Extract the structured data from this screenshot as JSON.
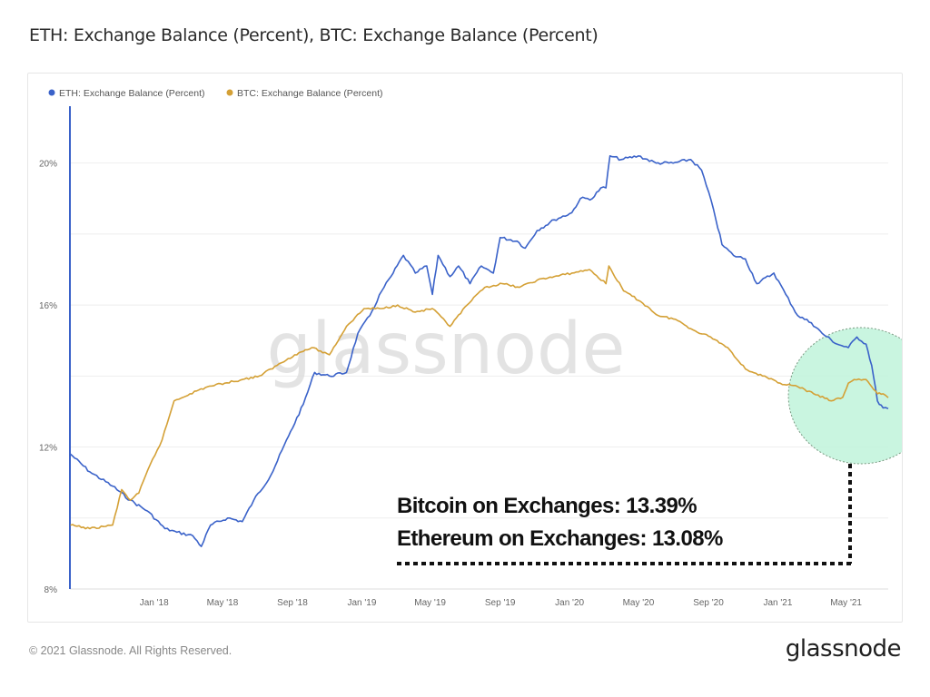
{
  "page": {
    "title": "ETH: Exchange Balance (Percent), BTC: Exchange Balance (Percent)",
    "footer_copyright": "© 2021 Glassnode. All Rights Reserved.",
    "footer_logo": "glassnode"
  },
  "chart_data": {
    "type": "line",
    "title": "ETH: Exchange Balance (Percent), BTC: Exchange Balance (Percent)",
    "legend": {
      "position": "top-left"
    },
    "grid": true,
    "watermark": "glassnode",
    "colors": {
      "ETH": "#3a62c9",
      "BTC": "#d4a035",
      "highlight_fill": "#bff3da",
      "highlight_stroke": "#7a9a82"
    },
    "y_ticks": [
      "8%",
      "12%",
      "16%",
      "20%"
    ],
    "ylim": [
      8,
      21.5
    ],
    "x_ticks": [
      "Jan '18",
      "May '18",
      "Sep '18",
      "Jan '19",
      "May '19",
      "Sep '19",
      "Jan '20",
      "May '20",
      "Sep '20",
      "Jan '21",
      "May '21"
    ],
    "x_range": [
      "2017-08-06",
      "2021-07-14"
    ],
    "series": [
      {
        "name": "ETH: Exchange Balance (Percent)",
        "color": "#3a62c9",
        "points": [
          [
            "2017-08-07",
            11.8
          ],
          [
            "2017-09-10",
            11.3
          ],
          [
            "2017-10-20",
            10.9
          ],
          [
            "2017-11-20",
            10.5
          ],
          [
            "2017-12-20",
            10.2
          ],
          [
            "2018-01-20",
            9.7
          ],
          [
            "2018-02-10",
            9.6
          ],
          [
            "2018-03-10",
            9.5
          ],
          [
            "2018-03-25",
            9.2
          ],
          [
            "2018-04-10",
            9.8
          ],
          [
            "2018-05-10",
            10.0
          ],
          [
            "2018-06-05",
            9.9
          ],
          [
            "2018-06-25",
            10.5
          ],
          [
            "2018-07-25",
            11.2
          ],
          [
            "2018-08-25",
            12.3
          ],
          [
            "2018-09-20",
            13.2
          ],
          [
            "2018-10-10",
            14.1
          ],
          [
            "2018-11-05",
            14.0
          ],
          [
            "2018-12-05",
            14.1
          ],
          [
            "2018-12-25",
            15.2
          ],
          [
            "2019-01-15",
            15.7
          ],
          [
            "2019-02-05",
            16.4
          ],
          [
            "2019-02-25",
            16.9
          ],
          [
            "2019-03-15",
            17.4
          ],
          [
            "2019-04-05",
            16.9
          ],
          [
            "2019-04-25",
            17.1
          ],
          [
            "2019-05-05",
            16.3
          ],
          [
            "2019-05-15",
            17.4
          ],
          [
            "2019-06-05",
            16.8
          ],
          [
            "2019-06-20",
            17.1
          ],
          [
            "2019-07-10",
            16.6
          ],
          [
            "2019-07-30",
            17.1
          ],
          [
            "2019-08-20",
            16.9
          ],
          [
            "2019-09-01",
            17.9
          ],
          [
            "2019-10-01",
            17.8
          ],
          [
            "2019-10-15",
            17.6
          ],
          [
            "2019-11-05",
            18.1
          ],
          [
            "2019-12-05",
            18.4
          ],
          [
            "2020-01-05",
            18.6
          ],
          [
            "2020-01-20",
            19.0
          ],
          [
            "2020-02-10",
            19.0
          ],
          [
            "2020-02-25",
            19.3
          ],
          [
            "2020-03-05",
            19.3
          ],
          [
            "2020-03-12",
            20.2
          ],
          [
            "2020-04-01",
            20.1
          ],
          [
            "2020-05-01",
            20.2
          ],
          [
            "2020-06-01",
            20.0
          ],
          [
            "2020-07-01",
            20.0
          ],
          [
            "2020-08-01",
            20.1
          ],
          [
            "2020-08-20",
            19.8
          ],
          [
            "2020-09-10",
            18.7
          ],
          [
            "2020-09-25",
            17.7
          ],
          [
            "2020-10-15",
            17.4
          ],
          [
            "2020-11-05",
            17.3
          ],
          [
            "2020-11-25",
            16.6
          ],
          [
            "2020-12-25",
            16.9
          ],
          [
            "2021-01-15",
            16.3
          ],
          [
            "2021-02-05",
            15.7
          ],
          [
            "2021-03-01",
            15.5
          ],
          [
            "2021-03-20",
            15.2
          ],
          [
            "2021-04-15",
            14.9
          ],
          [
            "2021-05-05",
            14.8
          ],
          [
            "2021-05-20",
            15.1
          ],
          [
            "2021-06-05",
            14.9
          ],
          [
            "2021-06-15",
            14.3
          ],
          [
            "2021-06-25",
            13.3
          ],
          [
            "2021-07-05",
            13.1
          ],
          [
            "2021-07-14",
            13.08
          ]
        ]
      },
      {
        "name": "BTC: Exchange Balance (Percent)",
        "color": "#d4a035",
        "points": [
          [
            "2017-08-07",
            9.8
          ],
          [
            "2017-09-10",
            9.7
          ],
          [
            "2017-10-20",
            9.8
          ],
          [
            "2017-11-05",
            10.8
          ],
          [
            "2017-11-20",
            10.5
          ],
          [
            "2017-12-05",
            10.7
          ],
          [
            "2017-12-25",
            11.5
          ],
          [
            "2018-01-15",
            12.2
          ],
          [
            "2018-02-05",
            13.3
          ],
          [
            "2018-03-05",
            13.5
          ],
          [
            "2018-04-05",
            13.7
          ],
          [
            "2018-05-05",
            13.8
          ],
          [
            "2018-06-05",
            13.9
          ],
          [
            "2018-07-05",
            14.0
          ],
          [
            "2018-08-05",
            14.3
          ],
          [
            "2018-09-05",
            14.6
          ],
          [
            "2018-10-05",
            14.8
          ],
          [
            "2018-11-05",
            14.6
          ],
          [
            "2018-12-05",
            15.4
          ],
          [
            "2019-01-05",
            15.9
          ],
          [
            "2019-02-05",
            15.9
          ],
          [
            "2019-03-05",
            16.0
          ],
          [
            "2019-04-05",
            15.8
          ],
          [
            "2019-05-05",
            15.9
          ],
          [
            "2019-06-05",
            15.4
          ],
          [
            "2019-07-05",
            16.0
          ],
          [
            "2019-08-05",
            16.5
          ],
          [
            "2019-09-05",
            16.6
          ],
          [
            "2019-10-05",
            16.5
          ],
          [
            "2019-11-05",
            16.7
          ],
          [
            "2019-12-05",
            16.8
          ],
          [
            "2020-01-05",
            16.9
          ],
          [
            "2020-02-05",
            17.0
          ],
          [
            "2020-03-05",
            16.6
          ],
          [
            "2020-03-10",
            17.1
          ],
          [
            "2020-04-05",
            16.4
          ],
          [
            "2020-05-05",
            16.1
          ],
          [
            "2020-06-05",
            15.7
          ],
          [
            "2020-07-05",
            15.6
          ],
          [
            "2020-08-05",
            15.3
          ],
          [
            "2020-09-05",
            15.1
          ],
          [
            "2020-10-05",
            14.8
          ],
          [
            "2020-11-05",
            14.2
          ],
          [
            "2020-12-05",
            14.0
          ],
          [
            "2021-01-05",
            13.8
          ],
          [
            "2021-02-05",
            13.7
          ],
          [
            "2021-03-05",
            13.5
          ],
          [
            "2021-04-05",
            13.3
          ],
          [
            "2021-04-25",
            13.4
          ],
          [
            "2021-05-05",
            13.8
          ],
          [
            "2021-05-15",
            13.9
          ],
          [
            "2021-06-05",
            13.9
          ],
          [
            "2021-06-15",
            13.7
          ],
          [
            "2021-06-25",
            13.5
          ],
          [
            "2021-07-05",
            13.5
          ],
          [
            "2021-07-14",
            13.39
          ]
        ]
      }
    ],
    "annotation": {
      "lines": [
        "Bitcoin on Exchanges: 13.39%",
        "Ethereum on Exchanges: 13.08%"
      ],
      "highlight_from": "2021-03-15",
      "highlight_to": "2021-07-14"
    }
  }
}
